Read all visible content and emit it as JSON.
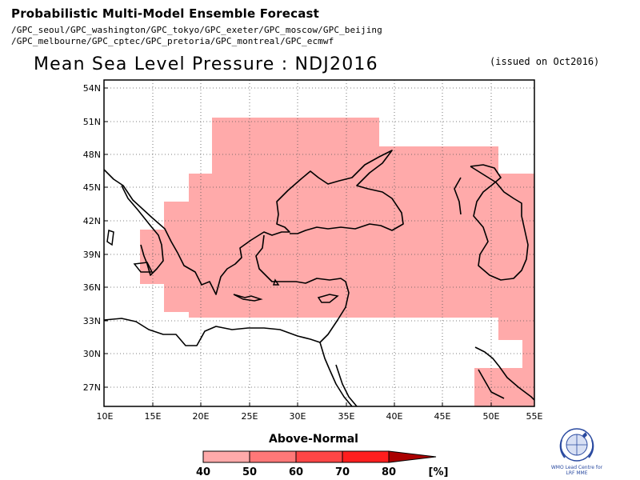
{
  "header": {
    "title": "Probabilistic Multi-Model Ensemble Forecast",
    "line1": "/GPC_seoul/GPC_washington/GPC_tokyo/GPC_exeter/GPC_moscow/GPC_beijing",
    "line2": "/GPC_melbourne/GPC_cptec/GPC_pretoria/GPC_montreal/GPC_ecmwf"
  },
  "map_title": "Mean Sea Level Pressure : NDJ2016",
  "issued": "(issued on Oct2016)",
  "map": {
    "lat_labels": [
      "54N",
      "51N",
      "48N",
      "45N",
      "42N",
      "39N",
      "36N",
      "33N",
      "30N",
      "27N"
    ],
    "lon_labels": [
      "10E",
      "15E",
      "20E",
      "25E",
      "30E",
      "35E",
      "40E",
      "45E",
      "50E",
      "55E"
    ],
    "shade_color": "#ffaaaa",
    "coast_color": "#000000"
  },
  "legend": {
    "title": "Above-Normal",
    "ticks": [
      "40",
      "50",
      "60",
      "70",
      "80"
    ],
    "unit": "[%]",
    "colors": [
      "#ffaaaa",
      "#ff7878",
      "#ff4646",
      "#ff1e1e",
      "#ee0000",
      "#aa0000"
    ]
  },
  "logo": {
    "icon": "wmo-emblem-icon",
    "text": "WMO Lead Centre for LRF MME"
  }
}
